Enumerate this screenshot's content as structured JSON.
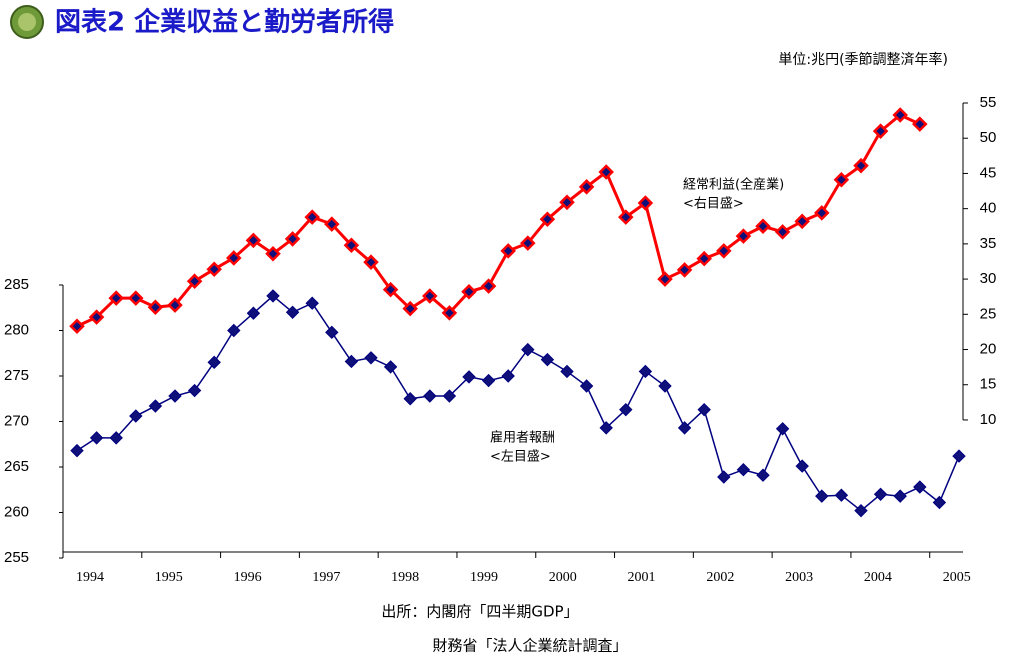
{
  "chart_data": {
    "type": "line",
    "title": "図表2 企業収益と勤労者所得",
    "unit": "単位:兆円(季節調整済年率)",
    "source": [
      "出所：内閣府「四半期GDP」",
      "財務省「法人企業統計調査」"
    ],
    "annotations": [
      {
        "text": [
          "経常利益(全産業)",
          "<右目盛>"
        ]
      },
      {
        "text": [
          "雇用者報酬",
          "<左目盛>"
        ]
      }
    ],
    "x_labels": [
      "1994",
      "1995",
      "1996",
      "1997",
      "1998",
      "1999",
      "2000",
      "2001",
      "2002",
      "2003",
      "2004",
      "2005"
    ],
    "ylim": [
      255,
      305
    ],
    "yticks": [
      255,
      260,
      265,
      270,
      275,
      280,
      285
    ],
    "y2lim": [
      -9.6,
      55
    ],
    "y2ticks": [
      10,
      15,
      20,
      25,
      30,
      35,
      40,
      45,
      50,
      55
    ],
    "series": [
      {
        "name": "雇用者報酬",
        "color": "#000080",
        "axis": "y",
        "values": [
          266.8,
          268.2,
          268.2,
          270.6,
          271.7,
          272.8,
          273.4,
          276.5,
          280,
          281.9,
          283.8,
          282,
          283,
          279.8,
          276.6,
          277,
          276,
          272.5,
          272.8,
          272.8,
          274.9,
          274.5,
          275,
          277.9,
          276.8,
          275.5,
          273.9,
          269.3,
          271.3,
          275.5,
          273.9,
          269.3,
          271.3,
          263.9,
          264.7,
          264.1,
          269.2,
          265.1,
          261.8,
          261.9,
          260.2,
          262,
          261.8,
          262.8,
          261.1,
          266.2
        ]
      },
      {
        "name": "経常利益(全産業)",
        "color": "#ff0000",
        "axis": "y2",
        "values": [
          23.3,
          24.6,
          27.3,
          27.3,
          26.0,
          26.3,
          29.7,
          31.4,
          33.0,
          35.5,
          33.6,
          35.7,
          38.8,
          37.8,
          34.8,
          32.4,
          28.5,
          25.8,
          27.6,
          25.2,
          28.2,
          29.0,
          34.0,
          35.1,
          38.5,
          40.9,
          43.1,
          45.2,
          38.8,
          40.8,
          30.0,
          31.3,
          32.9,
          34.0,
          36.1,
          37.5,
          36.7,
          38.2,
          39.4,
          44.1,
          46.1,
          51.0,
          53.3,
          52.0
        ]
      }
    ]
  }
}
